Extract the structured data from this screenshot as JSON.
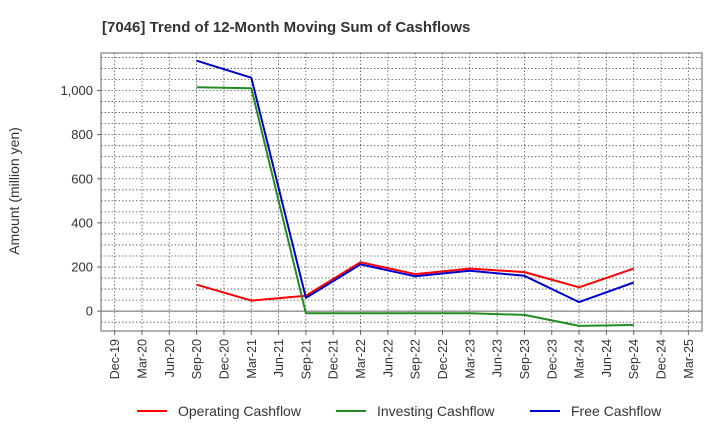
{
  "chart_data": {
    "type": "line",
    "title": "[7046]  Trend of 12-Month Moving Sum of Cashflows",
    "ylabel": "Amount (million yen)",
    "xlabel": "",
    "x": [
      "Dec-19",
      "Mar-20",
      "Jun-20",
      "Sep-20",
      "Dec-20",
      "Mar-21",
      "Jun-21",
      "Sep-21",
      "Dec-21",
      "Mar-22",
      "Jun-22",
      "Sep-22",
      "Dec-22",
      "Mar-23",
      "Jun-23",
      "Sep-23",
      "Dec-23",
      "Mar-24",
      "Jun-24",
      "Sep-24",
      "Dec-24",
      "Mar-25"
    ],
    "yticks": [
      0,
      200,
      400,
      600,
      800,
      1000
    ],
    "ytick_labels": [
      "0",
      "200",
      "400",
      "600",
      "800",
      "1,000"
    ],
    "ylim": [
      -90,
      1170
    ],
    "grid": true,
    "legend_position": "bottom",
    "series": [
      {
        "name": "Operating Cashflow",
        "color": "#ff0000",
        "values": [
          null,
          null,
          null,
          120,
          null,
          48,
          null,
          70,
          null,
          222,
          null,
          168,
          null,
          193,
          null,
          177,
          null,
          108,
          null,
          193,
          null,
          null
        ]
      },
      {
        "name": "Investing Cashflow",
        "color": "#228b22",
        "values": [
          null,
          null,
          null,
          1015,
          null,
          1010,
          null,
          -10,
          null,
          -10,
          null,
          -10,
          null,
          -10,
          null,
          -17,
          null,
          -67,
          null,
          -63,
          null,
          null
        ]
      },
      {
        "name": "Free Cashflow",
        "color": "#0000cd",
        "values": [
          null,
          null,
          null,
          1135,
          null,
          1058,
          null,
          60,
          null,
          212,
          null,
          158,
          null,
          183,
          null,
          160,
          null,
          41,
          null,
          130,
          null,
          null
        ]
      }
    ]
  }
}
